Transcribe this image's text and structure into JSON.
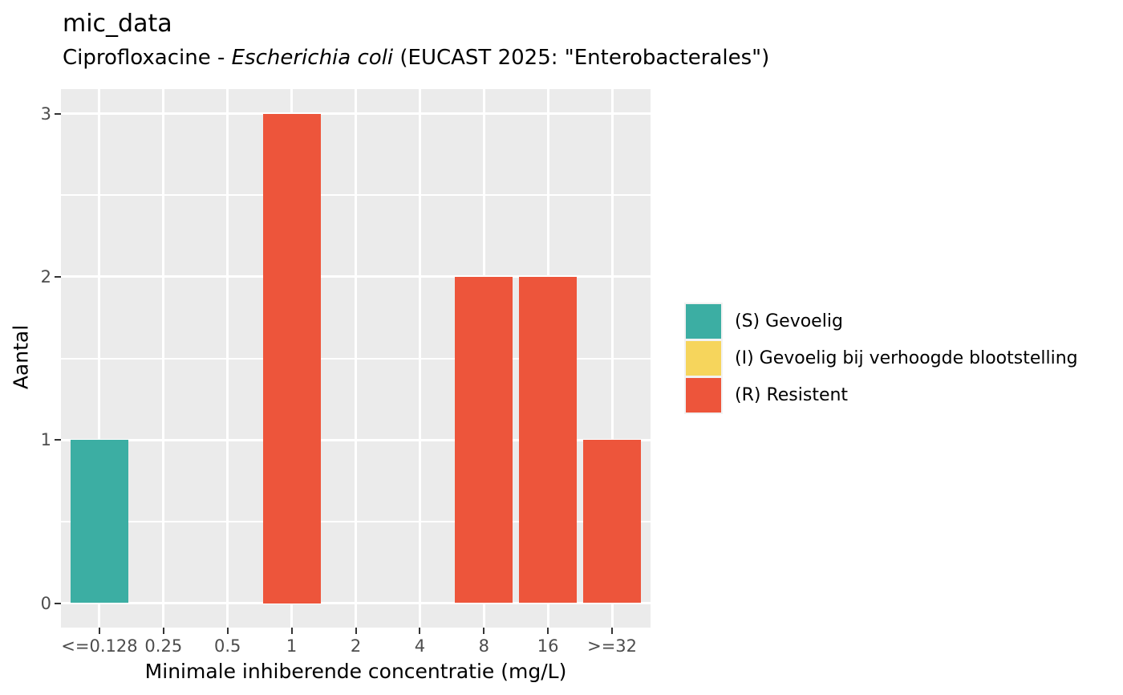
{
  "chart_data": {
    "type": "bar",
    "title": "mic_data",
    "subtitle_parts": {
      "prefix": "Ciprofloxacine - ",
      "italic": "Escherichia coli",
      "suffix": " (EUCAST 2025: \"Enterobacterales\")"
    },
    "xlabel": "Minimale inhiberende concentratie (mg/L)",
    "ylabel": "Aantal",
    "categories": [
      "<=0.128",
      "0.25",
      "0.5",
      "1",
      "2",
      "4",
      "8",
      "16",
      ">=32"
    ],
    "values": [
      1,
      0,
      0,
      3,
      0,
      0,
      2,
      2,
      1
    ],
    "bar_interpretations": [
      "S",
      "",
      "",
      "R",
      "",
      "",
      "R",
      "R",
      "R"
    ],
    "ylim": [
      0,
      3
    ],
    "yticks": [
      0,
      1,
      2,
      3
    ],
    "yticks_minor": [
      0.5,
      1.5,
      2.5
    ],
    "grid": true,
    "legend_position": "right",
    "colors": {
      "S": "#3CAEA3",
      "I": "#F6D55C",
      "R": "#ED553B"
    },
    "panel_background": "#EBEBEB",
    "grid_color": "#FFFFFF",
    "tick_color": "#333333",
    "tick_label_color": "#4D4D4D"
  },
  "legend": {
    "items": [
      {
        "code": "S",
        "label": "(S) Gevoelig",
        "color": "#3CAEA3"
      },
      {
        "code": "I",
        "label": "(I) Gevoelig bij verhoogde blootstelling",
        "color": "#F6D55C"
      },
      {
        "code": "R",
        "label": "(R) Resistent",
        "color": "#ED553B"
      }
    ]
  }
}
